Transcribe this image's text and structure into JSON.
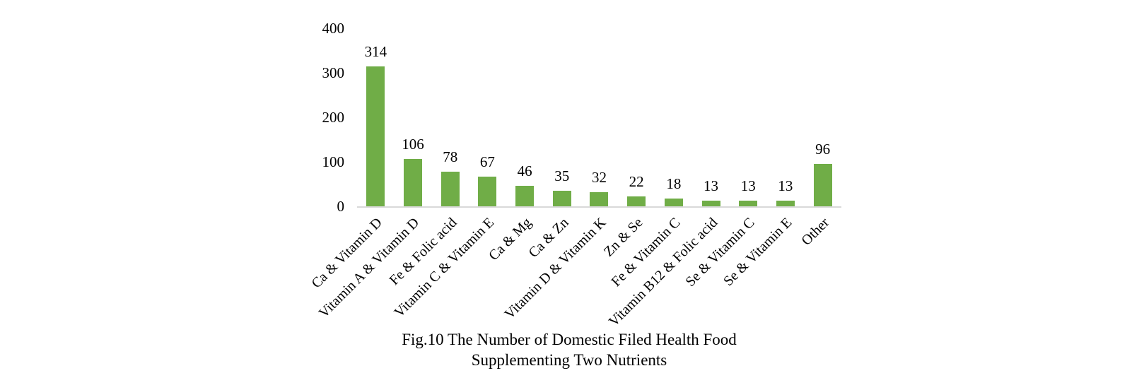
{
  "figure": {
    "caption_line1": "Fig.10 The Number of Domestic Filed Health Food",
    "caption_line2": "Supplementing Two Nutrients"
  },
  "chart_data": {
    "type": "bar",
    "title": "Fig.10 The Number of Domestic Filed Health Food Supplementing Two Nutrients",
    "categories": [
      "Ca & Vitamin D",
      "Vitamin A & Vitamin D",
      "Fe & Folic acid",
      "Vitamin C & Vitamin E",
      "Ca & Mg",
      "Ca & Zn",
      "Vitamin D & Vitamin K",
      "Zn & Se",
      "Fe & Vitamin C",
      "Vitamin B12 & Folic acid",
      "Se & Vitamin C",
      "Se & Vitamin E",
      "Other"
    ],
    "values": [
      314,
      106,
      78,
      67,
      46,
      35,
      32,
      22,
      18,
      13,
      13,
      13,
      96
    ],
    "data_labels_shown": true,
    "xlabel": "",
    "ylabel": "",
    "ylim": [
      0,
      400
    ],
    "yticks": [
      0,
      100,
      200,
      300,
      400
    ],
    "grid": false,
    "legend_position": "none",
    "x_label_rotation_deg": 45,
    "colors": {
      "bar": "#70ad47",
      "axis_line": "#d9d9d9",
      "text": "#000000",
      "background": "#ffffff"
    }
  }
}
